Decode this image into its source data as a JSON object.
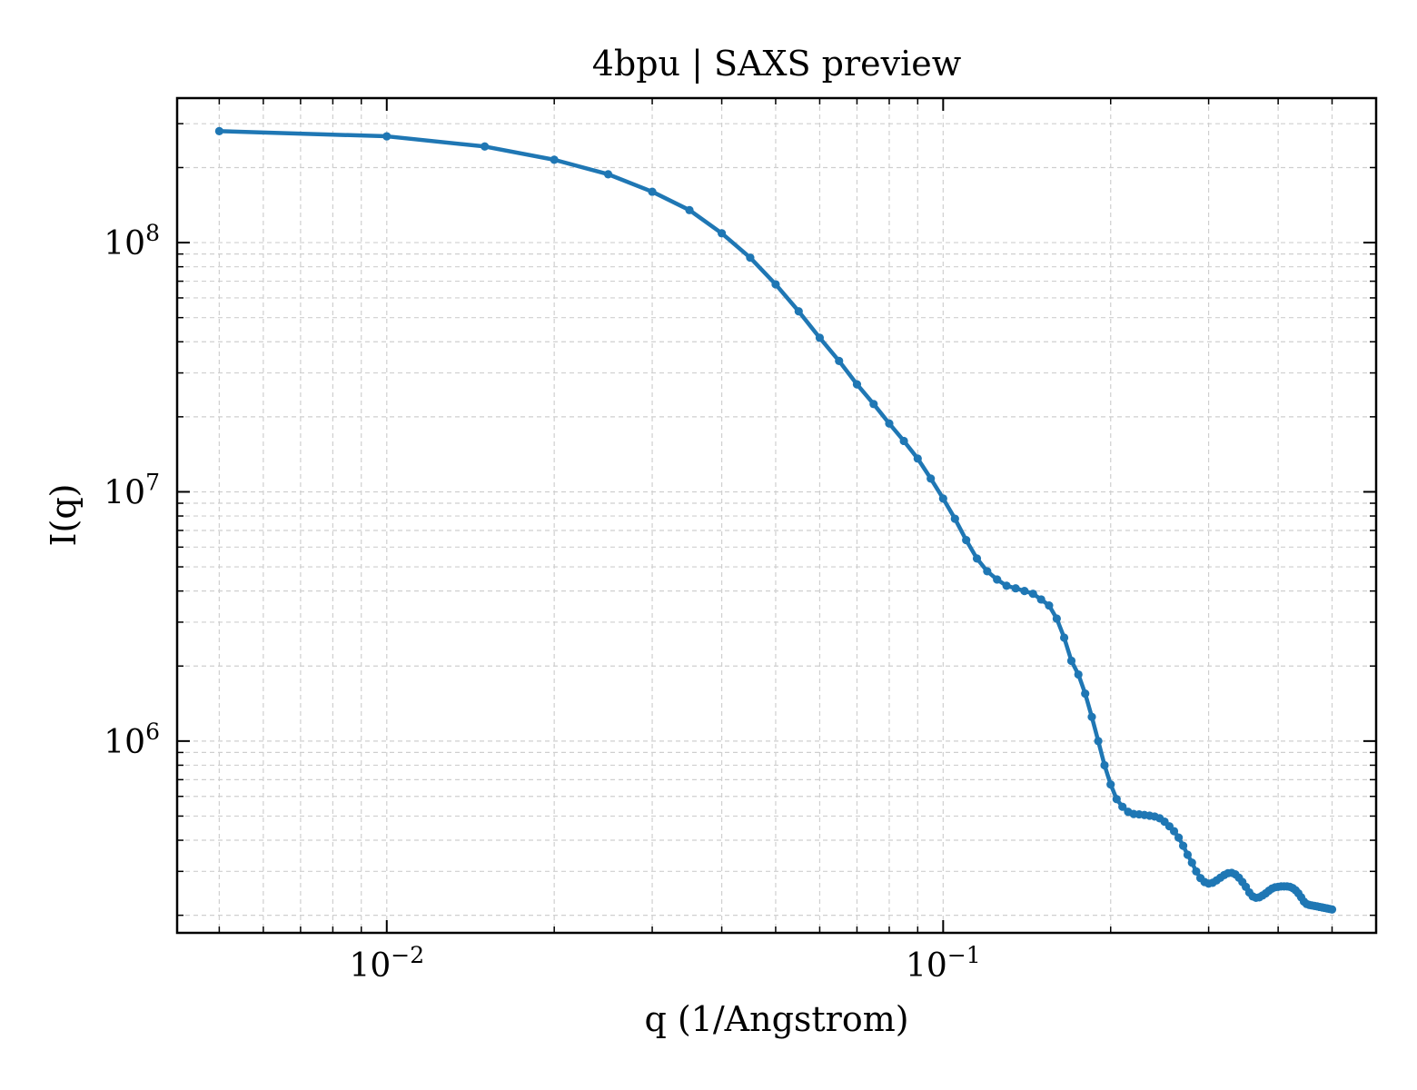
{
  "chart_data": {
    "type": "line",
    "title": "4bpu | SAXS preview",
    "xlabel": "q (1/Angstrom)",
    "ylabel": "I(q)",
    "xscale": "log",
    "yscale": "log",
    "xlim": [
      0.0042,
      0.6
    ],
    "ylim": [
      170000,
      380000000
    ],
    "grid": true,
    "legend": "none",
    "x_ticks": [
      {
        "value": 0.01,
        "base": "10",
        "exp": "−2"
      },
      {
        "value": 0.1,
        "base": "10",
        "exp": "−1"
      }
    ],
    "y_ticks": [
      {
        "value": 1000000,
        "base": "10",
        "exp": "6"
      },
      {
        "value": 10000000,
        "base": "10",
        "exp": "7"
      },
      {
        "value": 100000000,
        "base": "10",
        "exp": "8"
      }
    ],
    "series": [
      {
        "color": "#1f77b4",
        "x": [
          0.005,
          0.01,
          0.015,
          0.02,
          0.025,
          0.03,
          0.035,
          0.04,
          0.045,
          0.05,
          0.055,
          0.06,
          0.065,
          0.07,
          0.075,
          0.08,
          0.085,
          0.09,
          0.095,
          0.1,
          0.105,
          0.11,
          0.115,
          0.12,
          0.125,
          0.13,
          0.135,
          0.14,
          0.145,
          0.15,
          0.155,
          0.16,
          0.165,
          0.17,
          0.175,
          0.18,
          0.185,
          0.19,
          0.195,
          0.2,
          0.205,
          0.21,
          0.215,
          0.22,
          0.225,
          0.23,
          0.235,
          0.24,
          0.245,
          0.25,
          0.255,
          0.26,
          0.265,
          0.27,
          0.275,
          0.28,
          0.285,
          0.29,
          0.295,
          0.3,
          0.305,
          0.31,
          0.315,
          0.32,
          0.325,
          0.33,
          0.335,
          0.34,
          0.345,
          0.35,
          0.355,
          0.36,
          0.365,
          0.37,
          0.375,
          0.38,
          0.385,
          0.39,
          0.395,
          0.4,
          0.405,
          0.41,
          0.415,
          0.42,
          0.425,
          0.43,
          0.435,
          0.44,
          0.445,
          0.45,
          0.455,
          0.46,
          0.465,
          0.47,
          0.475,
          0.48,
          0.485,
          0.49,
          0.495,
          0.5
        ],
        "y": [
          280000000,
          267000000,
          243000000,
          215000000,
          188000000,
          160000000,
          135000000,
          109000000,
          87000000,
          68000000,
          53000000,
          41500000,
          33500000,
          27000000,
          22500000,
          18800000,
          16000000,
          13600000,
          11300000,
          9400000,
          7800000,
          6400000,
          5400000,
          4800000,
          4450000,
          4200000,
          4100000,
          4000000,
          3900000,
          3700000,
          3500000,
          3100000,
          2600000,
          2100000,
          1850000,
          1550000,
          1250000,
          1000000,
          800000,
          670000,
          585000,
          545000,
          520000,
          510000,
          508000,
          505000,
          502000,
          498000,
          490000,
          475000,
          455000,
          435000,
          410000,
          380000,
          350000,
          325000,
          300000,
          282000,
          272000,
          268000,
          270000,
          276000,
          283000,
          290000,
          295000,
          296000,
          292000,
          283000,
          272000,
          260000,
          247000,
          238000,
          235000,
          236000,
          240000,
          245000,
          251000,
          256000,
          259000,
          260000,
          261000,
          261000,
          261000,
          260000,
          257000,
          252000,
          245000,
          236000,
          227000,
          222000,
          220000,
          219000,
          218000,
          217000,
          216000,
          215000,
          214000,
          213000,
          212000,
          211000
        ]
      }
    ]
  }
}
